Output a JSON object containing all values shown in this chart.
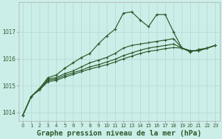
{
  "background_color": "#cceee8",
  "grid_color": "#b8ddd8",
  "line_color": "#2d5a2d",
  "title": "Graphe pression niveau de la mer (hPa)",
  "title_fontsize": 7.5,
  "ylim": [
    1013.7,
    1018.1
  ],
  "xlim": [
    -0.5,
    23.5
  ],
  "yticks": [
    1014,
    1015,
    1016,
    1017
  ],
  "xtick_labels": [
    "0",
    "1",
    "2",
    "3",
    "4",
    "5",
    "6",
    "7",
    "8",
    "9",
    "10",
    "11",
    "12",
    "13",
    "14",
    "15",
    "16",
    "17",
    "18",
    "19",
    "20",
    "21",
    "22",
    "23"
  ],
  "series": [
    [
      1013.9,
      1014.6,
      1014.9,
      1015.3,
      1015.4,
      1015.65,
      1015.85,
      1016.05,
      1016.2,
      1016.55,
      1016.85,
      1017.1,
      1017.7,
      1017.75,
      1017.45,
      1017.2,
      1017.65,
      1017.65,
      1017.0,
      1016.4,
      1016.25,
      1016.35,
      1016.4,
      1016.5
    ],
    [
      1013.9,
      1014.6,
      1014.9,
      1015.25,
      1015.3,
      1015.45,
      1015.55,
      1015.7,
      1015.85,
      1015.95,
      1016.05,
      1016.2,
      1016.4,
      1016.5,
      1016.55,
      1016.6,
      1016.65,
      1016.7,
      1016.75,
      1016.4,
      1016.3,
      1016.3,
      1016.4,
      1016.5
    ],
    [
      1013.9,
      1014.6,
      1014.85,
      1015.2,
      1015.25,
      1015.38,
      1015.48,
      1015.58,
      1015.7,
      1015.78,
      1015.88,
      1015.98,
      1016.12,
      1016.22,
      1016.32,
      1016.4,
      1016.45,
      1016.5,
      1016.55,
      1016.4,
      1016.3,
      1016.3,
      1016.4,
      1016.5
    ],
    [
      1013.9,
      1014.6,
      1014.85,
      1015.15,
      1015.2,
      1015.32,
      1015.42,
      1015.52,
      1015.62,
      1015.7,
      1015.78,
      1015.88,
      1016.0,
      1016.1,
      1016.2,
      1016.28,
      1016.32,
      1016.38,
      1016.42,
      1016.4,
      1016.3,
      1016.3,
      1016.4,
      1016.5
    ]
  ],
  "marker": "+",
  "marker_size": 3.5,
  "linewidth": 0.9
}
